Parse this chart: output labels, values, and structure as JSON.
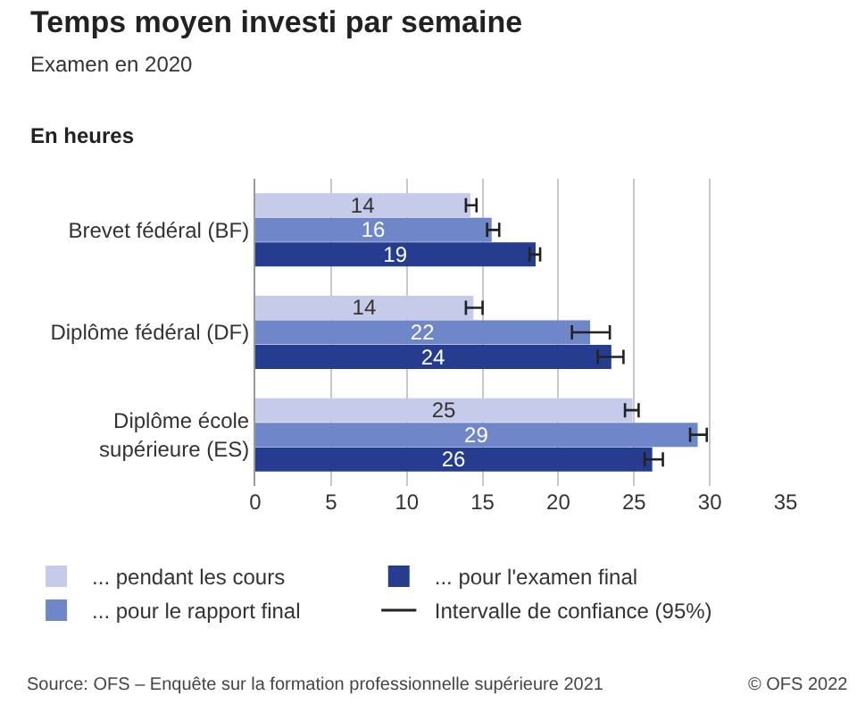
{
  "chart_data": {
    "type": "bar",
    "orientation": "horizontal",
    "title": "Temps moyen investi par semaine",
    "subtitle": "Examen en 2020",
    "xlabel": "En heures",
    "categories": [
      "Brevet fédéral (BF)",
      "Diplôme fédéral (DF)",
      "Diplôme école supérieure (ES)"
    ],
    "series": [
      {
        "name": "... pendant les cours",
        "color": "#c5cbe9",
        "values": [
          14.2,
          14.4,
          24.9
        ],
        "value_labels": [
          "14",
          "14",
          "25"
        ],
        "errors": [
          [
            13.9,
            14.6
          ],
          [
            13.9,
            15.0
          ],
          [
            24.4,
            25.3
          ]
        ]
      },
      {
        "name": "... pour le rapport final",
        "color": "#6f86c8",
        "values": [
          15.6,
          22.1,
          29.2
        ],
        "value_labels": [
          "16",
          "22",
          "29"
        ],
        "errors": [
          [
            15.3,
            16.1
          ],
          [
            20.9,
            23.4
          ],
          [
            28.7,
            29.8
          ]
        ]
      },
      {
        "name": "... pour l'examen final",
        "color": "#263d8f",
        "values": [
          18.5,
          23.5,
          26.2
        ],
        "value_labels": [
          "19",
          "24",
          "26"
        ],
        "errors": [
          [
            18.1,
            18.8
          ],
          [
            22.6,
            24.3
          ],
          [
            25.7,
            26.9
          ]
        ]
      }
    ],
    "xlim": [
      0,
      35
    ],
    "xticks": [
      0,
      5,
      10,
      15,
      20,
      25,
      30,
      35
    ],
    "grid": "x",
    "legend": "bottom",
    "annotations": [
      "Intervalle de confiance (95%)",
      "Source: OFS – Enquête sur la formation professionnelle supérieure 2021",
      "© OFS 2022"
    ]
  }
}
